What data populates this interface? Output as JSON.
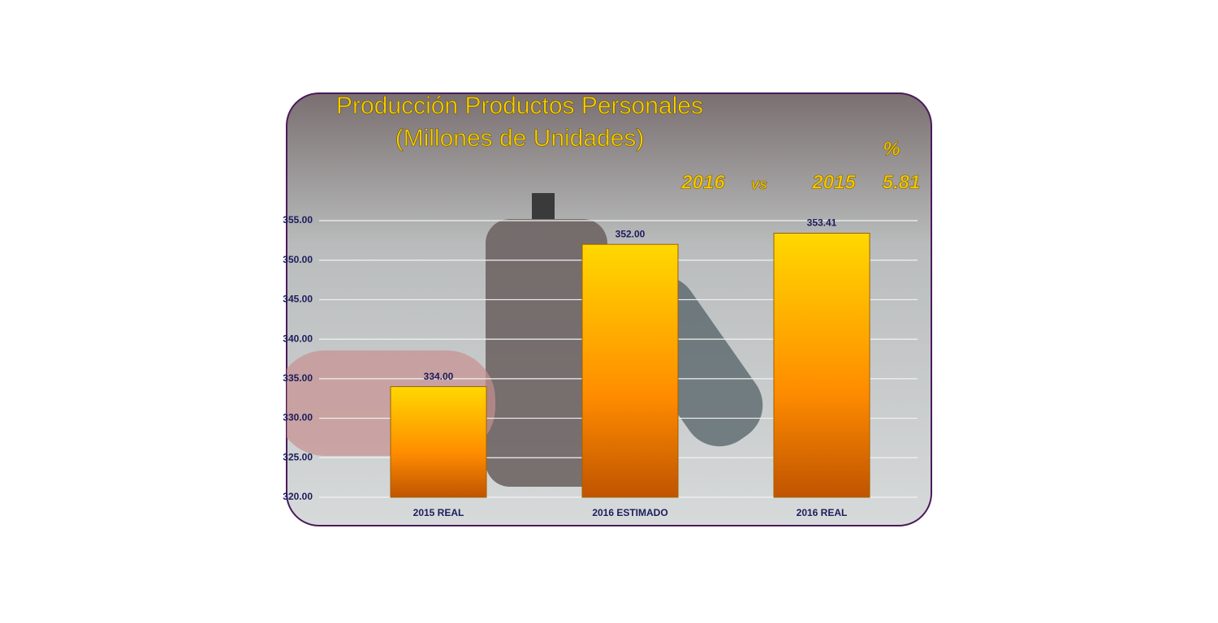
{
  "chart_data": {
    "type": "bar",
    "title": "Producción Productos Personales",
    "subtitle": "(Millones de Unidades)",
    "annotations": [
      "%",
      "2016",
      "vs",
      "2015",
      "5.81"
    ],
    "categories": [
      "2015 REAL",
      "2016 ESTIMADO",
      "2016 REAL"
    ],
    "values": [
      334,
      352,
      353.41
    ],
    "value_labels": [
      "334.00",
      "352.00",
      "353.41"
    ],
    "ylim": [
      320,
      355
    ],
    "yticks": [
      {
        "value": 320,
        "label": "320.00"
      },
      {
        "value": 325,
        "label": "325.00"
      },
      {
        "value": 330,
        "label": "330.00"
      },
      {
        "value": 335,
        "label": "335.00"
      },
      {
        "value": 340,
        "label": "340.00"
      },
      {
        "value": 345,
        "label": "345.00"
      },
      {
        "value": 350,
        "label": "350.00"
      },
      {
        "value": 355,
        "label": "355.00"
      }
    ],
    "grid": true
  }
}
